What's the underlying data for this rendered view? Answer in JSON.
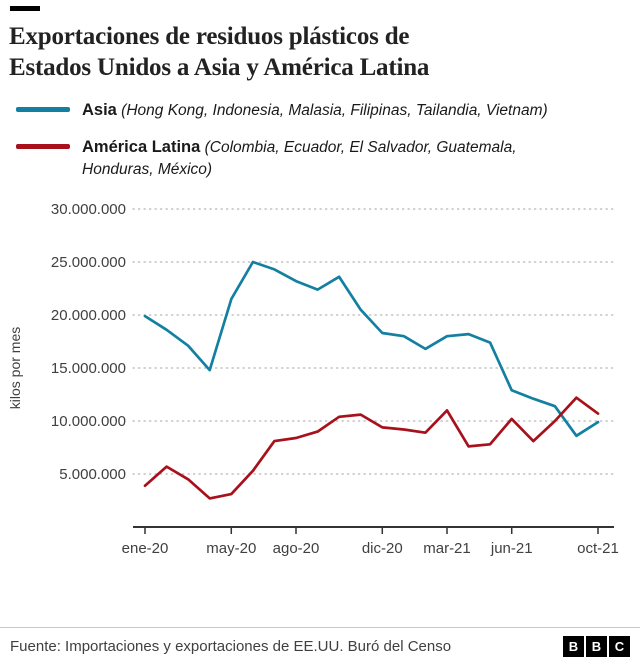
{
  "title": {
    "line1": "Exportaciones de residuos plásticos de",
    "line2": "Estados Unidos a Asia y América Latina"
  },
  "legend": [
    {
      "name": "Asia",
      "detail": "(Hong Kong, Indonesia, Malasia, Filipinas, Tailandia, Vietnam)",
      "color": "#1380A1"
    },
    {
      "name": "América Latina",
      "detail": "(Colombia, Ecuador, El Salvador, Guatemala, Honduras, México)",
      "color": "#a8111c"
    }
  ],
  "chart_data": {
    "type": "line",
    "x": [
      "ene-20",
      "feb-20",
      "mar-20",
      "abr-20",
      "may-20",
      "jun-20",
      "jul-20",
      "ago-20",
      "sep-20",
      "oct-20",
      "nov-20",
      "dic-20",
      "ene-21",
      "feb-21",
      "mar-21",
      "abr-21",
      "may-21",
      "jun-21",
      "jul-21",
      "ago-21",
      "sep-21",
      "oct-21"
    ],
    "series": [
      {
        "name": "Asia",
        "color": "#1380A1",
        "values": [
          19900000,
          18600000,
          17100000,
          14800000,
          21500000,
          25000000,
          24300000,
          23200000,
          22400000,
          23600000,
          20500000,
          18300000,
          18000000,
          16800000,
          18000000,
          18200000,
          17400000,
          12900000,
          12100000,
          11400000,
          8600000,
          9900000
        ]
      },
      {
        "name": "América Latina",
        "color": "#a8111c",
        "values": [
          3900000,
          5700000,
          4500000,
          2700000,
          3100000,
          5300000,
          8100000,
          8400000,
          9000000,
          10400000,
          10600000,
          9400000,
          9200000,
          8900000,
          11000000,
          7600000,
          7800000,
          10200000,
          8100000,
          10000000,
          12200000,
          10700000
        ]
      }
    ],
    "ylabel": "kilos por mes",
    "ylim": [
      0,
      30000000
    ],
    "grid": "dotted-horizontal",
    "legend_position": "top",
    "y_ticks": [
      {
        "value": 5000000,
        "label": "5.000.000"
      },
      {
        "value": 10000000,
        "label": "10.000.000"
      },
      {
        "value": 15000000,
        "label": "15.000.000"
      },
      {
        "value": 20000000,
        "label": "20.000.000"
      },
      {
        "value": 25000000,
        "label": "25.000.000"
      },
      {
        "value": 30000000,
        "label": "30.000.000"
      }
    ],
    "x_ticks": [
      {
        "index": 0,
        "label": "ene-20"
      },
      {
        "index": 4,
        "label": "may-20"
      },
      {
        "index": 7,
        "label": "ago-20"
      },
      {
        "index": 11,
        "label": "dic-20"
      },
      {
        "index": 14,
        "label": "mar-21"
      },
      {
        "index": 17,
        "label": "jun-21"
      },
      {
        "index": 21,
        "label": "oct-21"
      }
    ]
  },
  "footer": {
    "source": "Fuente: Importaciones y exportaciones de EE.UU. Buró del Censo",
    "logo": [
      "B",
      "B",
      "C"
    ]
  }
}
